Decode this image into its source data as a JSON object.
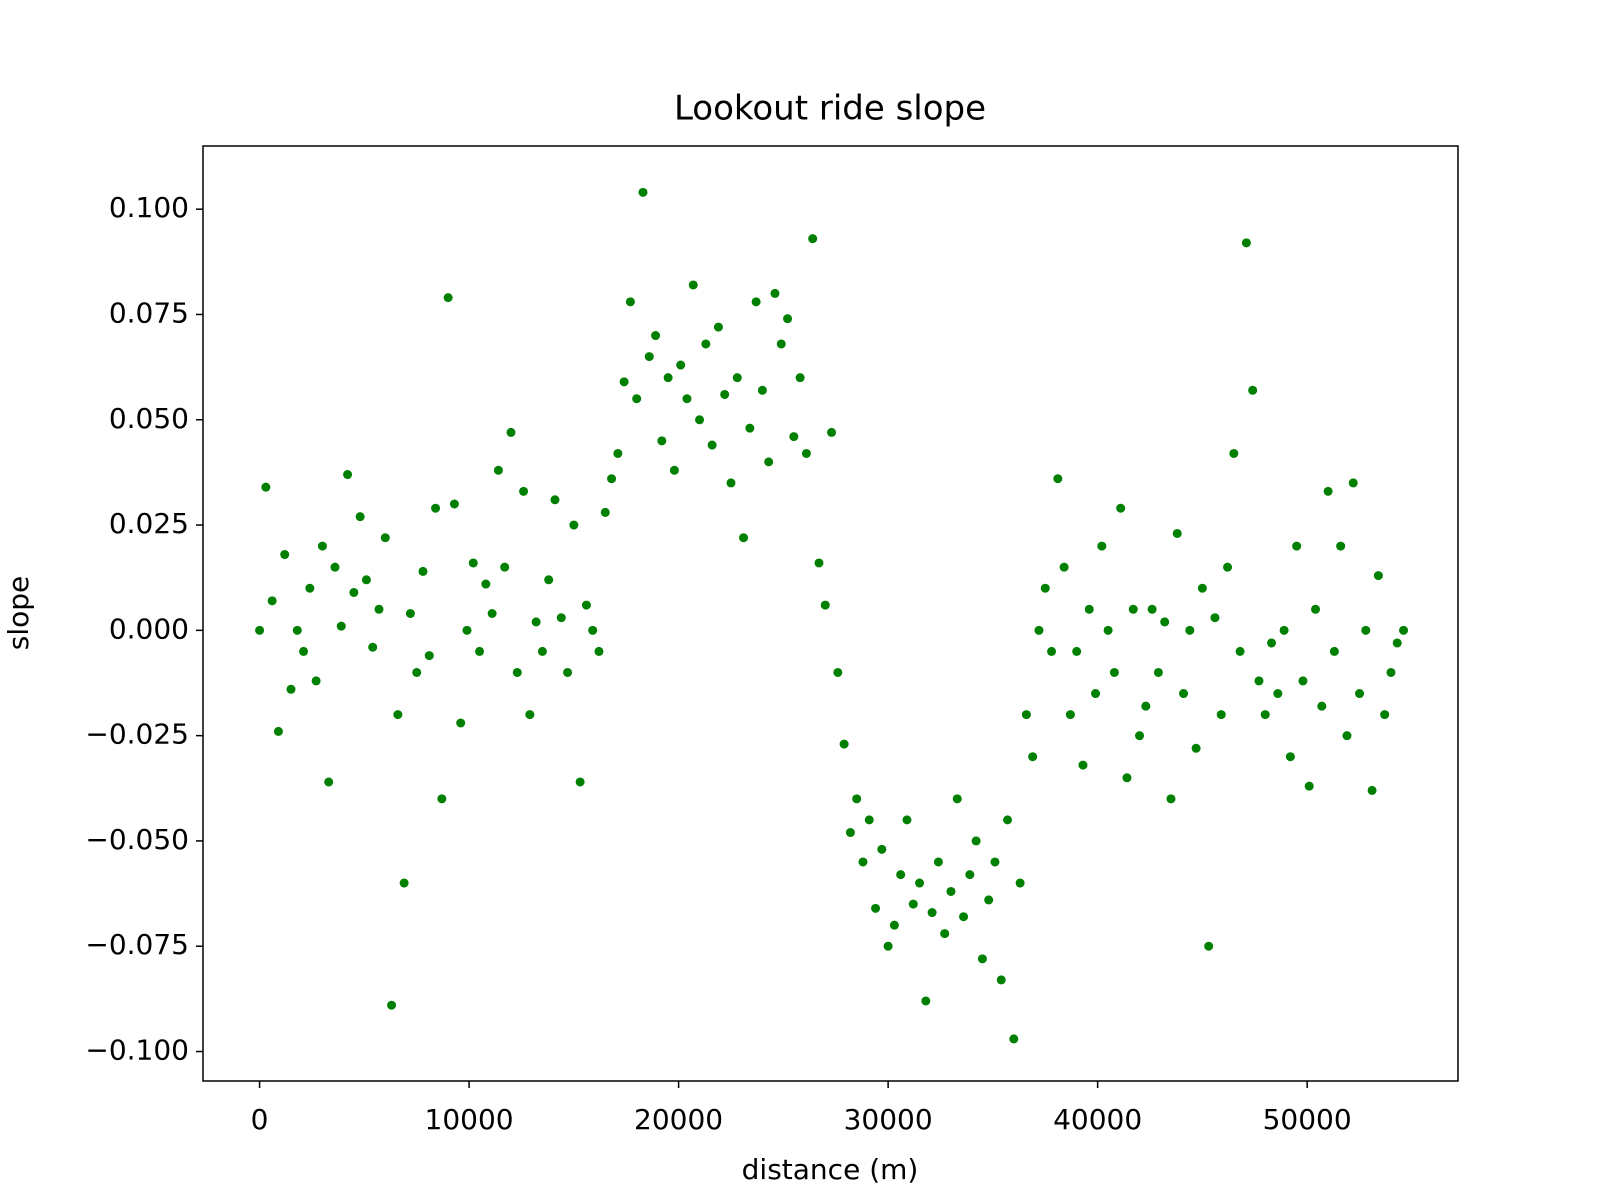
{
  "chart_data": {
    "type": "scatter",
    "title": "Lookout ride slope",
    "x_label": "distance (m)",
    "y_label": "slope",
    "color": "#008000",
    "grid": false,
    "xlim": [
      -2700,
      57200
    ],
    "ylim": [
      -0.107,
      0.115
    ],
    "xticks": [
      0,
      10000,
      20000,
      30000,
      40000,
      50000
    ],
    "yticks": [
      {
        "value": -0.1,
        "label": "−0.100"
      },
      {
        "value": -0.075,
        "label": "−0.075"
      },
      {
        "value": -0.05,
        "label": "−0.050"
      },
      {
        "value": -0.025,
        "label": "−0.025"
      },
      {
        "value": 0,
        "label": "0.000"
      },
      {
        "value": 0.025,
        "label": "0.025"
      },
      {
        "value": 0.05,
        "label": "0.050"
      },
      {
        "value": 0.075,
        "label": "0.075"
      },
      {
        "value": 0.1,
        "label": "0.100"
      }
    ],
    "x": [
      0,
      300,
      600,
      900,
      1200,
      1500,
      1800,
      2100,
      2400,
      2700,
      3000,
      3300,
      3600,
      3900,
      4200,
      4500,
      4800,
      5100,
      5400,
      5700,
      6000,
      6300,
      6600,
      6900,
      7200,
      7500,
      7800,
      8100,
      8400,
      8700,
      9000,
      9300,
      9600,
      9900,
      10200,
      10500,
      10800,
      11100,
      11400,
      11700,
      12000,
      12300,
      12600,
      12900,
      13200,
      13500,
      13800,
      14100,
      14400,
      14700,
      15000,
      15300,
      15600,
      15900,
      16200,
      16500,
      16800,
      17100,
      17400,
      17700,
      18000,
      18300,
      18600,
      18900,
      19200,
      19500,
      19800,
      20100,
      20400,
      20700,
      21000,
      21300,
      21600,
      21900,
      22200,
      22500,
      22800,
      23100,
      23400,
      23700,
      24000,
      24300,
      24600,
      24900,
      25200,
      25500,
      25800,
      26100,
      26400,
      26700,
      27000,
      27300,
      27600,
      27900,
      28200,
      28500,
      28800,
      29100,
      29400,
      29700,
      30000,
      30300,
      30600,
      30900,
      31200,
      31500,
      31800,
      32100,
      32400,
      32700,
      33000,
      33300,
      33600,
      33900,
      34200,
      34500,
      34800,
      35100,
      35400,
      35700,
      36000,
      36300,
      36600,
      36900,
      37200,
      37500,
      37800,
      38100,
      38400,
      38700,
      39000,
      39300,
      39600,
      39900,
      40200,
      40500,
      40800,
      41100,
      41400,
      41700,
      42000,
      42300,
      42600,
      42900,
      43200,
      43500,
      43800,
      44100,
      44400,
      44700,
      45000,
      45300,
      45600,
      45900,
      46200,
      46500,
      46800,
      47100,
      47400,
      47700,
      48000,
      48300,
      48600,
      48900,
      49200,
      49500,
      49800,
      50100,
      50400,
      50700,
      51000,
      51300,
      51600,
      51900,
      52200,
      52500,
      52800,
      53100,
      53400,
      53700,
      54000,
      54300,
      54600
    ],
    "values": [
      0.0,
      0.034,
      0.007,
      -0.024,
      0.018,
      -0.014,
      0.0,
      -0.005,
      0.01,
      -0.012,
      0.02,
      -0.036,
      0.015,
      0.001,
      0.037,
      0.009,
      0.027,
      0.012,
      -0.004,
      0.005,
      0.022,
      -0.089,
      -0.02,
      -0.06,
      0.004,
      -0.01,
      0.014,
      -0.006,
      0.029,
      -0.04,
      0.079,
      0.03,
      -0.022,
      0.0,
      0.016,
      -0.005,
      0.011,
      0.004,
      0.038,
      0.015,
      0.047,
      -0.01,
      0.033,
      -0.02,
      0.002,
      -0.005,
      0.012,
      0.031,
      0.003,
      -0.01,
      0.025,
      -0.036,
      0.006,
      0.0,
      -0.005,
      0.028,
      0.036,
      0.042,
      0.059,
      0.078,
      0.055,
      0.104,
      0.065,
      0.07,
      0.045,
      0.06,
      0.038,
      0.063,
      0.055,
      0.082,
      0.05,
      0.068,
      0.044,
      0.072,
      0.056,
      0.035,
      0.06,
      0.022,
      0.048,
      0.078,
      0.057,
      0.04,
      0.08,
      0.068,
      0.074,
      0.046,
      0.06,
      0.042,
      0.093,
      0.016,
      0.006,
      0.047,
      -0.01,
      -0.027,
      -0.048,
      -0.04,
      -0.055,
      -0.045,
      -0.066,
      -0.052,
      -0.075,
      -0.07,
      -0.058,
      -0.045,
      -0.065,
      -0.06,
      -0.088,
      -0.067,
      -0.055,
      -0.072,
      -0.062,
      -0.04,
      -0.068,
      -0.058,
      -0.05,
      -0.078,
      -0.064,
      -0.055,
      -0.083,
      -0.045,
      -0.097,
      -0.06,
      -0.02,
      -0.03,
      0.0,
      0.01,
      -0.005,
      0.036,
      0.015,
      -0.02,
      -0.005,
      -0.032,
      0.005,
      -0.015,
      0.02,
      0.0,
      -0.01,
      0.029,
      -0.035,
      0.005,
      -0.025,
      -0.018,
      0.005,
      -0.01,
      0.002,
      -0.04,
      0.023,
      -0.015,
      0.0,
      -0.028,
      0.01,
      -0.075,
      0.003,
      -0.02,
      0.015,
      0.042,
      -0.005,
      0.092,
      0.057,
      -0.012,
      -0.02,
      -0.003,
      -0.015,
      0.0,
      -0.03,
      0.02,
      -0.012,
      -0.037,
      0.005,
      -0.018,
      0.033,
      -0.005,
      0.02,
      -0.025,
      0.035,
      -0.015,
      0.0,
      -0.038,
      0.013,
      -0.02,
      -0.01,
      -0.003,
      0.0
    ]
  }
}
